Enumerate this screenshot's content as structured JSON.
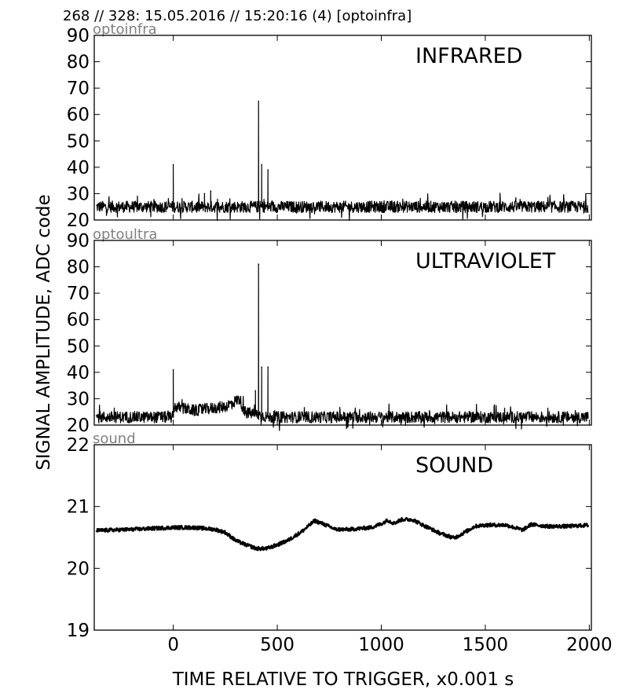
{
  "header": "268 // 328:   15.05.2016 // 15:20:16 (4)  [optoinfra]",
  "ylabel": "SIGNAL AMPLITUDE,  ADC code",
  "xlabel": "TIME RELATIVE TO TRIGGER,   x0.001 s",
  "xlim": [
    -380,
    2010
  ],
  "xticks": [
    0,
    500,
    1000,
    1500,
    2000
  ],
  "colors": {
    "trace": "#000000",
    "channel_label": "#808080"
  },
  "chart_data": [
    {
      "type": "line",
      "channel": "optoinfra",
      "title": "INFRARED",
      "ylim": [
        20,
        90
      ],
      "yticks": [
        20,
        30,
        40,
        50,
        60,
        70,
        80,
        90
      ],
      "baseline": 25,
      "noise": 2,
      "spikes": [
        {
          "x": 0,
          "y": 41
        },
        {
          "x": 150,
          "y": 30
        },
        {
          "x": 180,
          "y": 31
        },
        {
          "x": 410,
          "y": 65
        },
        {
          "x": 425,
          "y": 41
        },
        {
          "x": 455,
          "y": 39
        }
      ]
    },
    {
      "type": "line",
      "channel": "optoultra",
      "title": "ULTRAVIOLET",
      "ylim": [
        20,
        90
      ],
      "yticks": [
        20,
        30,
        40,
        50,
        60,
        70,
        80,
        90
      ],
      "baseline": 23,
      "noise": 2,
      "bump": [
        [
          0,
          23
        ],
        [
          5,
          27
        ],
        [
          100,
          25.5
        ],
        [
          250,
          27
        ],
        [
          320,
          30
        ],
        [
          340,
          25
        ],
        [
          400,
          24
        ],
        [
          460,
          23
        ]
      ],
      "spikes": [
        {
          "x": 0,
          "y": 41
        },
        {
          "x": 395,
          "y": 33
        },
        {
          "x": 410,
          "y": 81
        },
        {
          "x": 425,
          "y": 42
        },
        {
          "x": 455,
          "y": 42
        }
      ]
    },
    {
      "type": "line",
      "channel": "sound",
      "title": "SOUND",
      "ylim": [
        19,
        22
      ],
      "yticks": [
        19,
        20,
        21,
        22
      ],
      "noise": 0.03,
      "points": [
        [
          -380,
          20.61
        ],
        [
          -200,
          20.63
        ],
        [
          0,
          20.66
        ],
        [
          100,
          20.66
        ],
        [
          200,
          20.63
        ],
        [
          250,
          20.58
        ],
        [
          300,
          20.45
        ],
        [
          350,
          20.38
        ],
        [
          400,
          20.32
        ],
        [
          450,
          20.32
        ],
        [
          500,
          20.38
        ],
        [
          550,
          20.45
        ],
        [
          620,
          20.6
        ],
        [
          680,
          20.77
        ],
        [
          720,
          20.72
        ],
        [
          780,
          20.63
        ],
        [
          850,
          20.63
        ],
        [
          950,
          20.66
        ],
        [
          1000,
          20.72
        ],
        [
          1030,
          20.78
        ],
        [
          1060,
          20.73
        ],
        [
          1100,
          20.79
        ],
        [
          1150,
          20.79
        ],
        [
          1200,
          20.7
        ],
        [
          1280,
          20.57
        ],
        [
          1350,
          20.49
        ],
        [
          1400,
          20.58
        ],
        [
          1450,
          20.68
        ],
        [
          1500,
          20.7
        ],
        [
          1600,
          20.7
        ],
        [
          1680,
          20.62
        ],
        [
          1720,
          20.71
        ],
        [
          1800,
          20.68
        ],
        [
          1900,
          20.68
        ],
        [
          2000,
          20.7
        ]
      ]
    }
  ]
}
